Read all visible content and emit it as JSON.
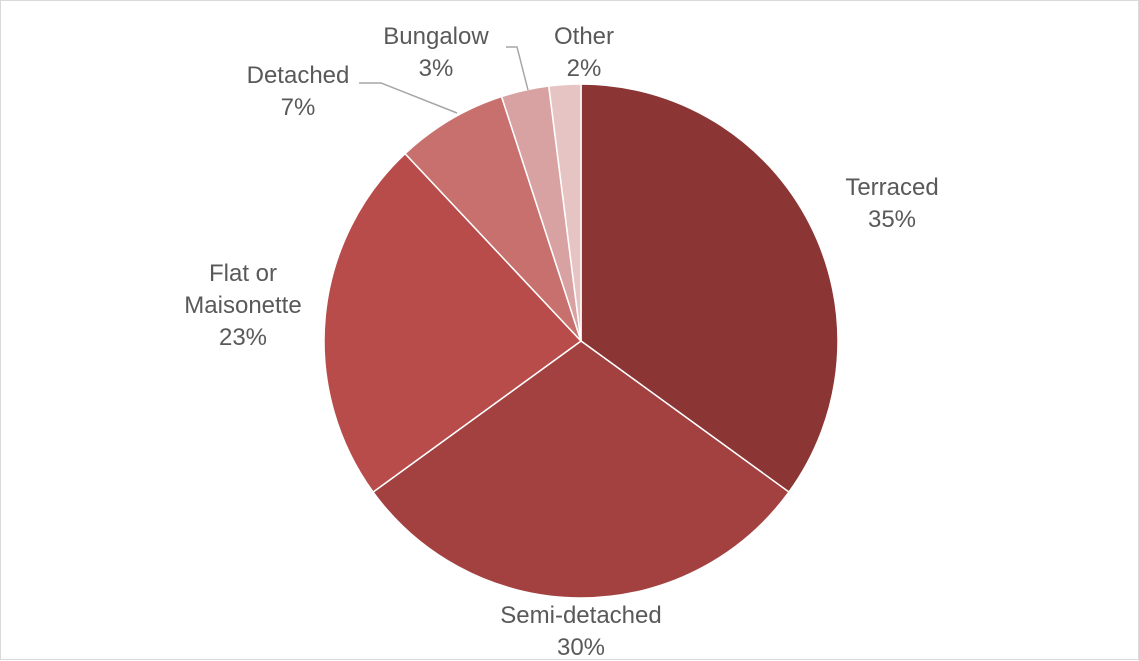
{
  "chart_data": {
    "type": "pie",
    "title": "",
    "categories": [
      "Terraced",
      "Semi-detached",
      "Flat or Maisonette",
      "Detached",
      "Bungalow",
      "Other"
    ],
    "values": [
      35,
      30,
      23,
      7,
      3,
      2
    ],
    "value_labels": [
      "35%",
      "30%",
      "23%",
      "7%",
      "3%",
      "2%"
    ],
    "label_lines": [
      [
        "Terraced"
      ],
      [
        "Semi-detached"
      ],
      [
        "Flat or",
        "Maisonette"
      ],
      [
        "Detached"
      ],
      [
        "Bungalow"
      ],
      [
        "Other"
      ]
    ],
    "colors": [
      "#8b3535",
      "#a34141",
      "#b84c4a",
      "#c8706d",
      "#d9a2a2",
      "#e6c4c4"
    ],
    "start_angle": "12 o'clock",
    "direction": "clockwise",
    "legend": "none",
    "data_labels": "category and percentage"
  }
}
